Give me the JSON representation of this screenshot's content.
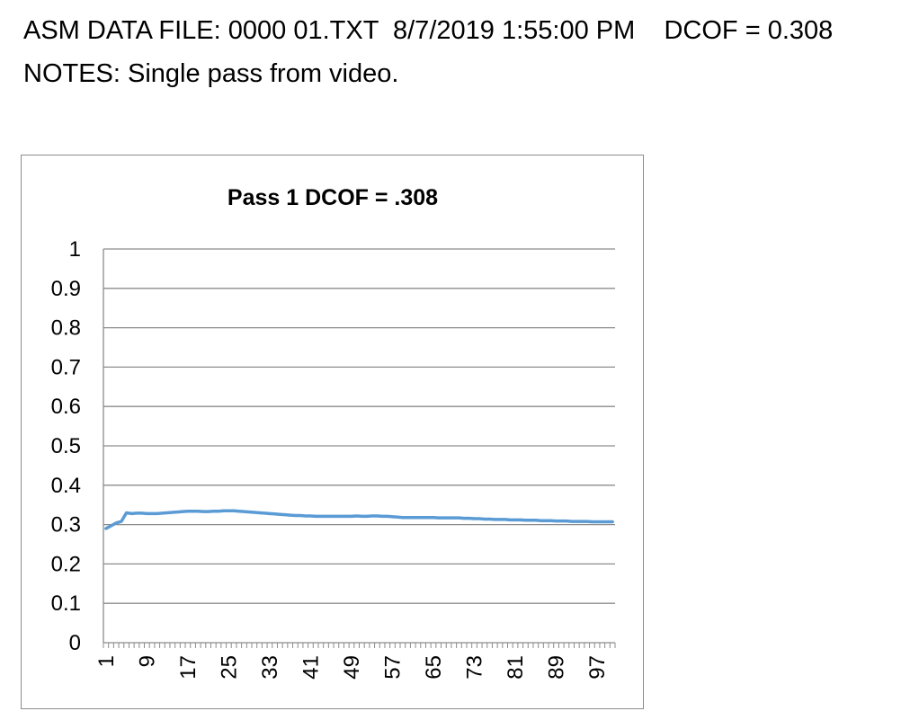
{
  "header": {
    "line1": "ASM DATA FILE: 0000 01.TXT  8/7/2019 1:55:00 PM    DCOF = 0.308",
    "line2": "NOTES: Single pass from video."
  },
  "chart_data": {
    "type": "line",
    "title": "Pass 1  DCOF =  .308",
    "xlabel": "",
    "ylabel": "",
    "ylim": [
      0,
      1
    ],
    "yticks": [
      "0",
      "0.1",
      "0.2",
      "0.3",
      "0.4",
      "0.5",
      "0.6",
      "0.7",
      "0.8",
      "0.9",
      "1"
    ],
    "xlim": [
      1,
      100
    ],
    "xticks": [
      "1",
      "9",
      "17",
      "25",
      "33",
      "41",
      "49",
      "57",
      "65",
      "73",
      "81",
      "89",
      "97"
    ],
    "grid": "horizontal",
    "legend": "none",
    "line_color": "#5b9bd5",
    "series": [
      {
        "values": [
          0.29,
          0.297,
          0.304,
          0.308,
          0.33,
          0.328,
          0.329,
          0.329,
          0.328,
          0.328,
          0.328,
          0.329,
          0.33,
          0.331,
          0.332,
          0.333,
          0.334,
          0.334,
          0.334,
          0.333,
          0.333,
          0.334,
          0.334,
          0.335,
          0.335,
          0.335,
          0.334,
          0.333,
          0.332,
          0.331,
          0.33,
          0.329,
          0.328,
          0.327,
          0.326,
          0.325,
          0.324,
          0.323,
          0.323,
          0.322,
          0.322,
          0.321,
          0.321,
          0.321,
          0.321,
          0.321,
          0.321,
          0.321,
          0.321,
          0.322,
          0.321,
          0.321,
          0.322,
          0.322,
          0.321,
          0.321,
          0.32,
          0.319,
          0.318,
          0.318,
          0.318,
          0.318,
          0.318,
          0.318,
          0.318,
          0.317,
          0.317,
          0.317,
          0.317,
          0.317,
          0.316,
          0.316,
          0.315,
          0.315,
          0.314,
          0.314,
          0.313,
          0.313,
          0.313,
          0.312,
          0.312,
          0.312,
          0.311,
          0.311,
          0.311,
          0.31,
          0.31,
          0.31,
          0.309,
          0.309,
          0.309,
          0.308,
          0.308,
          0.308,
          0.308,
          0.307,
          0.307,
          0.307,
          0.307,
          0.307
        ]
      }
    ]
  }
}
